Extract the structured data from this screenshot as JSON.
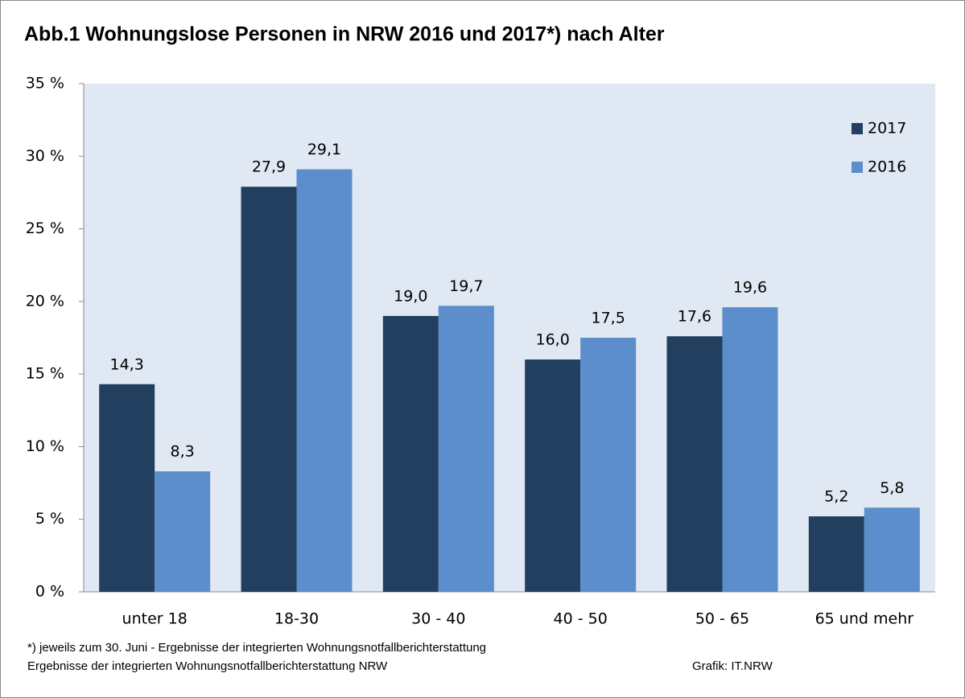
{
  "chart_data": {
    "type": "bar",
    "title": "Abb.1 Wohnungslose  Personen in NRW  2016 und 2017*) nach Alter",
    "categories": [
      "unter 18",
      "18-30",
      "30 - 40",
      "40 - 50",
      "50 - 65",
      "65 und mehr"
    ],
    "series": [
      {
        "name": "2017",
        "color": "#223f5f",
        "values": [
          14.3,
          27.9,
          19.0,
          16.0,
          17.6,
          5.2
        ],
        "value_labels": [
          "14,3",
          "27,9",
          "19,0",
          "16,0",
          "17,6",
          "5,2"
        ]
      },
      {
        "name": "2016",
        "color": "#5b8ecb",
        "values": [
          8.3,
          29.1,
          19.7,
          17.5,
          19.6,
          5.8
        ],
        "value_labels": [
          "8,3",
          "29,1",
          "19,7",
          "17,5",
          "19,6",
          "5,8"
        ]
      }
    ],
    "ylim": [
      0,
      35
    ],
    "yticks": [
      {
        "value": 0,
        "label": "0 %"
      },
      {
        "value": 5,
        "label": "5 %"
      },
      {
        "value": 10,
        "label": "10 %"
      },
      {
        "value": 15,
        "label": "15 %"
      },
      {
        "value": 20,
        "label": "20 %"
      },
      {
        "value": 25,
        "label": "25 %"
      },
      {
        "value": 30,
        "label": "30 %"
      },
      {
        "value": 35,
        "label": "35 %"
      }
    ],
    "grid": false,
    "legend": "top-right",
    "footnotes": [
      "*) jeweils zum 30. Juni  - Ergebnisse der integrierten Wohnungsnotfallberichterstattung",
      "Ergebnisse der integrierten Wohnungsnotfallberichterstattung NRW"
    ],
    "source": "Grafik: IT.NRW"
  }
}
